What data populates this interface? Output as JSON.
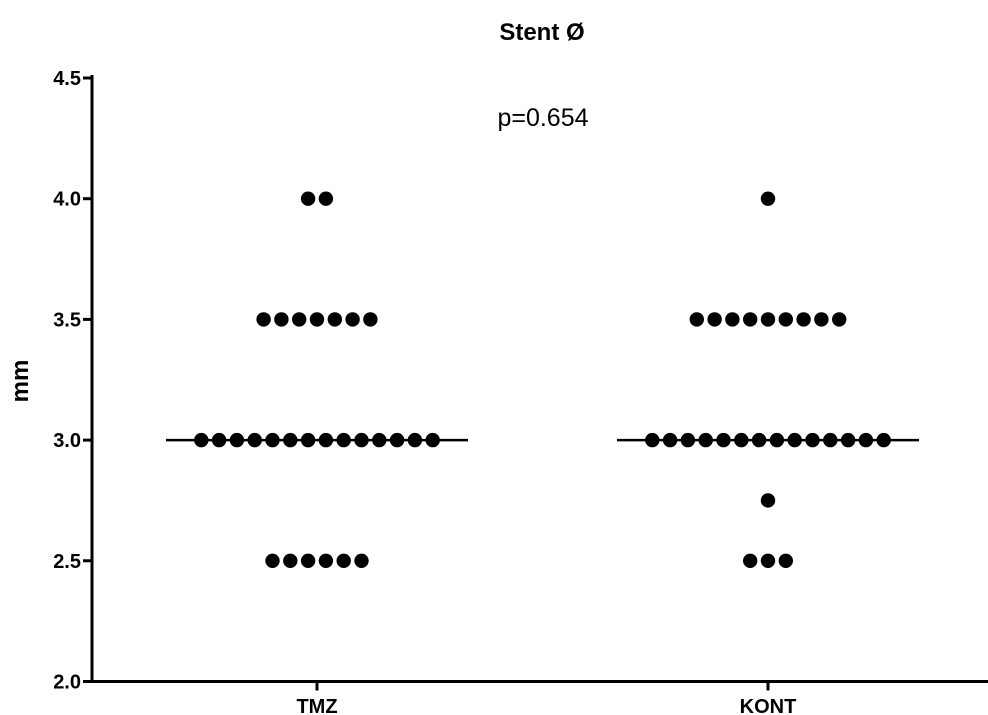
{
  "chart_data": {
    "type": "scatter",
    "title": "Stent Ø",
    "xlabel": "",
    "ylabel": "mm",
    "ylim": [
      2.0,
      4.5
    ],
    "yticks": [
      "2.0",
      "2.5",
      "3.0",
      "3.5",
      "4.0",
      "4.5"
    ],
    "categories": [
      "TMZ",
      "KONT"
    ],
    "annotation": "p=0.654",
    "grid": false,
    "series": [
      {
        "category": "TMZ",
        "values": [
          4.0,
          4.0,
          3.5,
          3.5,
          3.5,
          3.5,
          3.5,
          3.5,
          3.5,
          3.0,
          3.0,
          3.0,
          3.0,
          3.0,
          3.0,
          3.0,
          3.0,
          3.0,
          3.0,
          3.0,
          3.0,
          3.0,
          3.0,
          2.5,
          2.5,
          2.5,
          2.5,
          2.5,
          2.5
        ],
        "median": 3.0
      },
      {
        "category": "KONT",
        "values": [
          4.0,
          3.5,
          3.5,
          3.5,
          3.5,
          3.5,
          3.5,
          3.5,
          3.5,
          3.5,
          3.0,
          3.0,
          3.0,
          3.0,
          3.0,
          3.0,
          3.0,
          3.0,
          3.0,
          3.0,
          3.0,
          3.0,
          3.0,
          3.0,
          2.75,
          2.5,
          2.5,
          2.5
        ],
        "median": 3.0
      }
    ]
  }
}
